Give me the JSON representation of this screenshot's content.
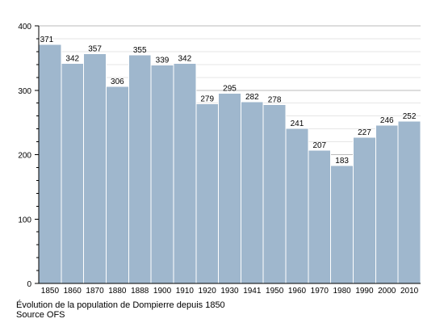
{
  "chart_data": {
    "type": "bar",
    "categories": [
      "1850",
      "1860",
      "1870",
      "1880",
      "1888",
      "1900",
      "1910",
      "1920",
      "1930",
      "1941",
      "1950",
      "1960",
      "1970",
      "1980",
      "1990",
      "2000",
      "2010"
    ],
    "values": [
      371,
      342,
      357,
      306,
      355,
      339,
      342,
      279,
      295,
      282,
      278,
      241,
      207,
      183,
      227,
      246,
      252
    ],
    "yticks": [
      0,
      100,
      200,
      300,
      400
    ],
    "ylim": [
      0,
      400
    ],
    "grid": true,
    "bar_color": "#9fb7cd",
    "bar_edge_color": "#ffffff",
    "grid_color": "#cccccc"
  },
  "caption": {
    "line1": "Évolution de la population de Dompierre depuis 1850",
    "line2": "Source OFS"
  }
}
